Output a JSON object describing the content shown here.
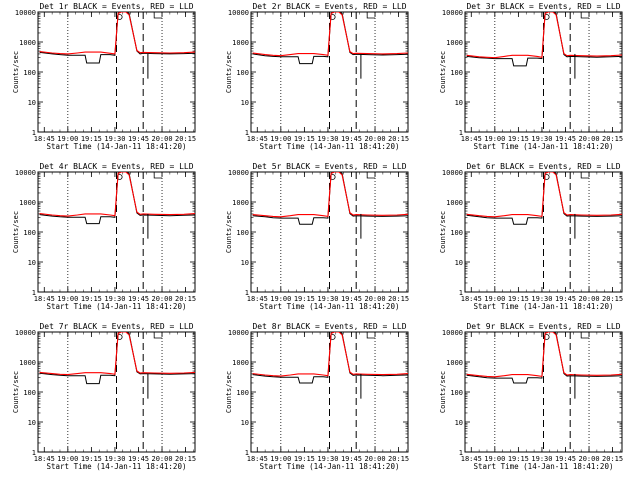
{
  "start_time_label": "Start Time (14-Jan-11 18:41:20)",
  "y_axis_label": "Counts/sec",
  "x_tick_labels": [
    "18:45",
    "19:00",
    "19:15",
    "19:30",
    "19:45",
    "20:00",
    "20:15"
  ],
  "y_tick_labels": [
    "1",
    "10",
    "100",
    "1000",
    "10000"
  ],
  "colors": {
    "events": "#000000",
    "lld": "#ff0000",
    "axes": "#000000",
    "background": "#ffffff"
  },
  "chart_data": [
    {
      "type": "line",
      "title": "Det 1r BLACK = Events, RED = LLD",
      "yscale": "log",
      "ylim": [
        1,
        10000
      ],
      "xlabel": "Start Time (14-Jan-11 18:41:20)",
      "ylabel": "Counts/sec",
      "x": [
        "18:42",
        "18:50",
        "18:55",
        "19:00",
        "19:06",
        "19:11",
        "19:12",
        "19:20",
        "19:21",
        "19:27",
        "19:30",
        "19:32",
        "19:34",
        "19:37",
        "19:39",
        "19:44",
        "19:46",
        "19:48",
        "19:55",
        "20:05",
        "20:14",
        "20:21"
      ],
      "series": [
        {
          "name": "Events",
          "color": "#000000",
          "values": [
            450,
            400,
            380,
            360,
            360,
            360,
            200,
            200,
            380,
            380,
            360,
            9000,
            10000,
            10000,
            9000,
            500,
            400,
            420,
            410,
            400,
            410,
            420
          ]
        },
        {
          "name": "LLD",
          "color": "#ff0000",
          "values": [
            480,
            430,
            410,
            400,
            430,
            460,
            460,
            460,
            460,
            420,
            400,
            9000,
            10000,
            10000,
            8000,
            520,
            440,
            450,
            440,
            430,
            440,
            460
          ]
        }
      ]
    },
    {
      "type": "line",
      "title": "Det 2r BLACK = Events, RED = LLD",
      "yscale": "log",
      "ylim": [
        1,
        10000
      ],
      "xlabel": "Start Time (14-Jan-11 18:41:20)",
      "ylabel": "Counts/sec",
      "x": [
        "18:42",
        "18:50",
        "18:55",
        "19:00",
        "19:06",
        "19:11",
        "19:12",
        "19:20",
        "19:21",
        "19:27",
        "19:30",
        "19:32",
        "19:34",
        "19:37",
        "19:39",
        "19:44",
        "19:46",
        "19:48",
        "19:55",
        "20:05",
        "20:14",
        "20:21"
      ],
      "series": [
        {
          "name": "Events",
          "color": "#000000",
          "values": [
            400,
            350,
            330,
            320,
            320,
            320,
            190,
            190,
            330,
            330,
            320,
            9000,
            10000,
            10000,
            9000,
            450,
            380,
            390,
            380,
            370,
            380,
            390
          ]
        },
        {
          "name": "LLD",
          "color": "#ff0000",
          "values": [
            430,
            380,
            360,
            350,
            380,
            410,
            410,
            410,
            410,
            380,
            360,
            9000,
            10000,
            10000,
            8000,
            480,
            410,
            420,
            410,
            400,
            410,
            430
          ]
        }
      ]
    },
    {
      "type": "line",
      "title": "Det 3r BLACK = Events, RED = LLD",
      "yscale": "log",
      "ylim": [
        1,
        10000
      ],
      "xlabel": "Start Time (14-Jan-11 18:41:20)",
      "ylabel": "Counts/sec",
      "x": [
        "18:42",
        "18:50",
        "18:55",
        "19:00",
        "19:06",
        "19:11",
        "19:12",
        "19:20",
        "19:21",
        "19:27",
        "19:30",
        "19:32",
        "19:34",
        "19:37",
        "19:39",
        "19:44",
        "19:46",
        "19:48",
        "19:55",
        "20:05",
        "20:14",
        "20:21"
      ],
      "series": [
        {
          "name": "Events",
          "color": "#000000",
          "values": [
            330,
            300,
            290,
            280,
            280,
            280,
            160,
            160,
            290,
            290,
            280,
            9000,
            10000,
            10000,
            9000,
            380,
            320,
            330,
            320,
            310,
            320,
            330
          ]
        },
        {
          "name": "LLD",
          "color": "#ff0000",
          "values": [
            360,
            320,
            310,
            300,
            330,
            360,
            360,
            360,
            360,
            330,
            310,
            9000,
            10000,
            10000,
            8000,
            410,
            350,
            360,
            350,
            340,
            350,
            370
          ]
        }
      ]
    },
    {
      "type": "line",
      "title": "Det 4r BLACK = Events, RED = LLD",
      "yscale": "log",
      "ylim": [
        1,
        10000
      ],
      "xlabel": "Start Time (14-Jan-11 18:41:20)",
      "ylabel": "Counts/sec",
      "x": [
        "18:42",
        "18:50",
        "18:55",
        "19:00",
        "19:06",
        "19:11",
        "19:12",
        "19:20",
        "19:21",
        "19:27",
        "19:30",
        "19:32",
        "19:34",
        "19:37",
        "19:39",
        "19:44",
        "19:46",
        "19:48",
        "19:55",
        "20:05",
        "20:14",
        "20:21"
      ],
      "series": [
        {
          "name": "Events",
          "color": "#000000",
          "values": [
            380,
            340,
            320,
            310,
            310,
            310,
            190,
            190,
            320,
            320,
            310,
            9000,
            10000,
            10000,
            9000,
            430,
            360,
            370,
            360,
            350,
            360,
            370
          ]
        },
        {
          "name": "LLD",
          "color": "#ff0000",
          "values": [
            410,
            370,
            350,
            340,
            370,
            400,
            400,
            400,
            400,
            370,
            350,
            9000,
            10000,
            10000,
            8000,
            460,
            390,
            400,
            390,
            380,
            390,
            410
          ]
        }
      ]
    },
    {
      "type": "line",
      "title": "Det 5r BLACK = Events, RED = LLD",
      "yscale": "log",
      "ylim": [
        1,
        10000
      ],
      "xlabel": "Start Time (14-Jan-11 18:41:20)",
      "ylabel": "Counts/sec",
      "x": [
        "18:42",
        "18:50",
        "18:55",
        "19:00",
        "19:06",
        "19:11",
        "19:12",
        "19:20",
        "19:21",
        "19:27",
        "19:30",
        "19:32",
        "19:34",
        "19:37",
        "19:39",
        "19:44",
        "19:46",
        "19:48",
        "19:55",
        "20:05",
        "20:14",
        "20:21"
      ],
      "series": [
        {
          "name": "Events",
          "color": "#000000",
          "values": [
            350,
            320,
            300,
            290,
            290,
            290,
            180,
            180,
            300,
            300,
            290,
            9000,
            10000,
            10000,
            9000,
            410,
            340,
            350,
            340,
            330,
            340,
            350
          ]
        },
        {
          "name": "LLD",
          "color": "#ff0000",
          "values": [
            380,
            350,
            330,
            320,
            350,
            380,
            380,
            380,
            380,
            350,
            330,
            9000,
            10000,
            10000,
            8000,
            440,
            370,
            380,
            370,
            360,
            370,
            390
          ]
        }
      ]
    },
    {
      "type": "line",
      "title": "Det 6r BLACK = Events, RED = LLD",
      "yscale": "log",
      "ylim": [
        1,
        10000
      ],
      "xlabel": "Start Time (14-Jan-11 18:41:20)",
      "ylabel": "Counts/sec",
      "x": [
        "18:42",
        "18:50",
        "18:55",
        "19:00",
        "19:06",
        "19:11",
        "19:12",
        "19:20",
        "19:21",
        "19:27",
        "19:30",
        "19:32",
        "19:34",
        "19:37",
        "19:39",
        "19:44",
        "19:46",
        "19:48",
        "19:55",
        "20:05",
        "20:14",
        "20:21"
      ],
      "series": [
        {
          "name": "Events",
          "color": "#000000",
          "values": [
            360,
            320,
            300,
            290,
            290,
            290,
            180,
            180,
            300,
            300,
            290,
            9000,
            10000,
            10000,
            9000,
            410,
            340,
            350,
            340,
            330,
            340,
            350
          ]
        },
        {
          "name": "LLD",
          "color": "#ff0000",
          "values": [
            390,
            350,
            330,
            320,
            350,
            380,
            380,
            380,
            380,
            350,
            330,
            9000,
            10000,
            10000,
            8000,
            440,
            370,
            380,
            370,
            360,
            370,
            390
          ]
        }
      ]
    },
    {
      "type": "line",
      "title": "Det 7r BLACK = Events, RED = LLD",
      "yscale": "log",
      "ylim": [
        1,
        10000
      ],
      "xlabel": "Start Time (14-Jan-11 18:41:20)",
      "ylabel": "Counts/sec",
      "x": [
        "18:42",
        "18:50",
        "18:55",
        "19:00",
        "19:06",
        "19:11",
        "19:12",
        "19:20",
        "19:21",
        "19:27",
        "19:30",
        "19:32",
        "19:34",
        "19:37",
        "19:39",
        "19:44",
        "19:46",
        "19:48",
        "19:55",
        "20:05",
        "20:14",
        "20:21"
      ],
      "series": [
        {
          "name": "Events",
          "color": "#000000",
          "values": [
            420,
            380,
            360,
            350,
            350,
            350,
            190,
            190,
            360,
            360,
            350,
            9000,
            10000,
            10000,
            9000,
            470,
            400,
            410,
            400,
            390,
            400,
            410
          ]
        },
        {
          "name": "LLD",
          "color": "#ff0000",
          "values": [
            450,
            410,
            390,
            380,
            410,
            440,
            440,
            440,
            440,
            410,
            390,
            9000,
            10000,
            10000,
            8000,
            500,
            430,
            440,
            430,
            420,
            430,
            450
          ]
        }
      ]
    },
    {
      "type": "line",
      "title": "Det 8r BLACK = Events, RED = LLD",
      "yscale": "log",
      "ylim": [
        1,
        10000
      ],
      "xlabel": "Start Time (14-Jan-11 18:41:20)",
      "ylabel": "Counts/sec",
      "x": [
        "18:42",
        "18:50",
        "18:55",
        "19:00",
        "19:06",
        "19:11",
        "19:12",
        "19:20",
        "19:21",
        "19:27",
        "19:30",
        "19:32",
        "19:34",
        "19:37",
        "19:39",
        "19:44",
        "19:46",
        "19:48",
        "19:55",
        "20:05",
        "20:14",
        "20:21"
      ],
      "series": [
        {
          "name": "Events",
          "color": "#000000",
          "values": [
            380,
            340,
            320,
            310,
            310,
            310,
            200,
            200,
            320,
            320,
            310,
            9000,
            10000,
            10000,
            9000,
            430,
            360,
            370,
            360,
            350,
            360,
            370
          ]
        },
        {
          "name": "LLD",
          "color": "#ff0000",
          "values": [
            410,
            370,
            350,
            340,
            370,
            400,
            400,
            400,
            400,
            370,
            350,
            9000,
            10000,
            10000,
            8000,
            460,
            390,
            400,
            390,
            380,
            390,
            410
          ]
        }
      ]
    },
    {
      "type": "line",
      "title": "Det 9r BLACK = Events, RED = LLD",
      "yscale": "log",
      "ylim": [
        1,
        10000
      ],
      "xlabel": "Start Time (14-Jan-11 18:41:20)",
      "ylabel": "Counts/sec",
      "x": [
        "18:42",
        "18:50",
        "18:55",
        "19:00",
        "19:06",
        "19:11",
        "19:12",
        "19:20",
        "19:21",
        "19:27",
        "19:30",
        "19:32",
        "19:34",
        "19:37",
        "19:39",
        "19:44",
        "19:46",
        "19:48",
        "19:55",
        "20:05",
        "20:14",
        "20:21"
      ],
      "series": [
        {
          "name": "Events",
          "color": "#000000",
          "values": [
            360,
            320,
            300,
            290,
            290,
            290,
            200,
            200,
            300,
            300,
            290,
            9000,
            10000,
            10000,
            9000,
            410,
            340,
            350,
            340,
            330,
            340,
            350
          ]
        },
        {
          "name": "LLD",
          "color": "#ff0000",
          "values": [
            390,
            350,
            330,
            320,
            350,
            380,
            380,
            380,
            380,
            350,
            330,
            9000,
            10000,
            10000,
            8000,
            440,
            370,
            380,
            370,
            360,
            370,
            390
          ]
        }
      ]
    }
  ]
}
